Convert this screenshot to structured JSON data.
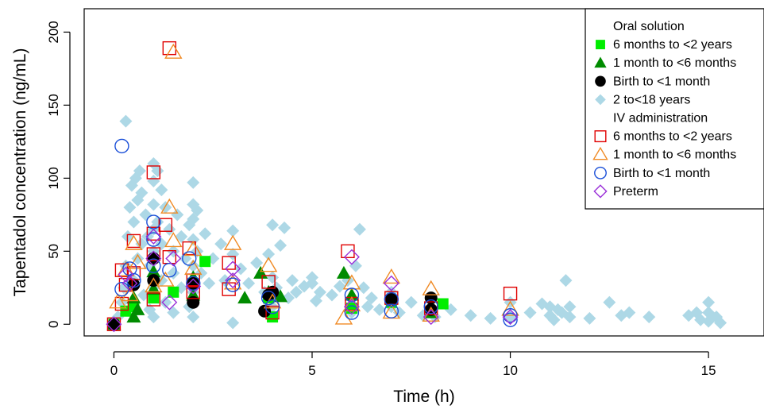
{
  "chart_data": {
    "type": "scatter",
    "title": "",
    "xlabel": "Time (h)",
    "ylabel": "Tapentadol concentration (ng/mL)",
    "xlim": [
      -0.75,
      16.4
    ],
    "ylim": [
      -8,
      216
    ],
    "xticks": [
      "0",
      "5",
      "10",
      "15"
    ],
    "yticks": [
      "0",
      "50",
      "100",
      "150",
      "200"
    ],
    "grid": false,
    "legend_position": "top-right",
    "legend_groups": [
      "Oral solution",
      "IV administration"
    ],
    "colors": {
      "oral_6m_2y": "#00ee00",
      "oral_1m_6m": "#008b00",
      "oral_birth_1m": "#000000",
      "oral_2_18y": "#add8e6",
      "iv_6m_2y": "#e00000",
      "iv_1m_6m": "#f08a24",
      "iv_birth_1m": "#1a4fd8",
      "iv_preterm": "#9a2fd8"
    },
    "series": [
      {
        "name": "6 months to <2 years",
        "group": "Oral solution",
        "marker": "filled-square",
        "color_key": "oral_6m_2y",
        "points": [
          [
            0,
            0
          ],
          [
            0.3,
            9
          ],
          [
            0.5,
            12
          ],
          [
            1,
            18
          ],
          [
            1.5,
            22
          ],
          [
            2,
            28
          ],
          [
            2.3,
            43
          ],
          [
            4,
            5
          ],
          [
            6,
            11
          ],
          [
            8.3,
            14
          ],
          [
            7,
            15
          ],
          [
            3.9,
            18
          ]
        ]
      },
      {
        "name": "1 month to <6 months",
        "group": "Oral solution",
        "marker": "filled-triangle",
        "color_key": "oral_1m_6m",
        "points": [
          [
            0.5,
            5
          ],
          [
            0.6,
            10
          ],
          [
            0.5,
            18
          ],
          [
            1,
            36
          ],
          [
            1,
            24
          ],
          [
            2,
            32
          ],
          [
            2,
            20
          ],
          [
            3.3,
            18
          ],
          [
            3.7,
            35
          ],
          [
            3.9,
            22
          ],
          [
            4.2,
            19
          ],
          [
            5.8,
            35
          ],
          [
            6,
            20
          ],
          [
            7,
            18
          ],
          [
            8,
            8
          ],
          [
            0,
            0
          ]
        ]
      },
      {
        "name": "Birth to <1 month",
        "group": "Oral solution",
        "marker": "filled-circle",
        "color_key": "oral_birth_1m",
        "points": [
          [
            0,
            0
          ],
          [
            0.5,
            27
          ],
          [
            1,
            45
          ],
          [
            1,
            30
          ],
          [
            2,
            15
          ],
          [
            2,
            28
          ],
          [
            3.8,
            9
          ],
          [
            3.9,
            20
          ],
          [
            4,
            22
          ],
          [
            7,
            17
          ],
          [
            8,
            18
          ],
          [
            8,
            10
          ]
        ]
      },
      {
        "name": "2 to<18 years",
        "group": "Oral solution",
        "marker": "filled-diamond",
        "color_key": "oral_2_18y",
        "points": [
          [
            0,
            0
          ],
          [
            0.1,
            5
          ],
          [
            0.2,
            15
          ],
          [
            0.25,
            25
          ],
          [
            0.3,
            40
          ],
          [
            0.3,
            139
          ],
          [
            0.35,
            60
          ],
          [
            0.4,
            80
          ],
          [
            0.45,
            95
          ],
          [
            0.5,
            70
          ],
          [
            0.5,
            30
          ],
          [
            0.55,
            100
          ],
          [
            0.6,
            85
          ],
          [
            0.6,
            45
          ],
          [
            0.65,
            105
          ],
          [
            0.7,
            90
          ],
          [
            0.7,
            55
          ],
          [
            0.75,
            20
          ],
          [
            0.8,
            75
          ],
          [
            0.85,
            60
          ],
          [
            0.9,
            40
          ],
          [
            0.9,
            10
          ],
          [
            1,
            110
          ],
          [
            1,
            98
          ],
          [
            1,
            82
          ],
          [
            1,
            65
          ],
          [
            1,
            50
          ],
          [
            1,
            25
          ],
          [
            1,
            5
          ],
          [
            1.1,
            105
          ],
          [
            1.1,
            70
          ],
          [
            1.2,
            92
          ],
          [
            1.2,
            55
          ],
          [
            1.2,
            30
          ],
          [
            1.3,
            80
          ],
          [
            1.3,
            15
          ],
          [
            1.4,
            65
          ],
          [
            1.5,
            50
          ],
          [
            1.5,
            35
          ],
          [
            1.5,
            8
          ],
          [
            1.6,
            75
          ],
          [
            1.7,
            60
          ],
          [
            1.7,
            25
          ],
          [
            1.8,
            45
          ],
          [
            1.9,
            68
          ],
          [
            1.9,
            12
          ],
          [
            2,
            97
          ],
          [
            2,
            82
          ],
          [
            2,
            72
          ],
          [
            2,
            58
          ],
          [
            2,
            40
          ],
          [
            2,
            22
          ],
          [
            2,
            5
          ],
          [
            2.1,
            78
          ],
          [
            2.1,
            50
          ],
          [
            2.2,
            35
          ],
          [
            2.3,
            62
          ],
          [
            2.4,
            28
          ],
          [
            2.5,
            45
          ],
          [
            2.7,
            55
          ],
          [
            2.8,
            30
          ],
          [
            3,
            64
          ],
          [
            3,
            48
          ],
          [
            3,
            1
          ],
          [
            3.2,
            38
          ],
          [
            3.4,
            28
          ],
          [
            3.6,
            42
          ],
          [
            3.8,
            22
          ],
          [
            3.9,
            48
          ],
          [
            4,
            68
          ],
          [
            4,
            32
          ],
          [
            4,
            12
          ],
          [
            4.1,
            25
          ],
          [
            4.2,
            54
          ],
          [
            4.3,
            66
          ],
          [
            4.4,
            18
          ],
          [
            4.5,
            30
          ],
          [
            4.6,
            22
          ],
          [
            4.8,
            26
          ],
          [
            5,
            28
          ],
          [
            5,
            32
          ],
          [
            5.1,
            16
          ],
          [
            5.2,
            22
          ],
          [
            5.5,
            20
          ],
          [
            5.7,
            26
          ],
          [
            5.9,
            30
          ],
          [
            6,
            18
          ],
          [
            6,
            8
          ],
          [
            6.1,
            40
          ],
          [
            6.2,
            65
          ],
          [
            6.3,
            25
          ],
          [
            6.4,
            12
          ],
          [
            6.5,
            18
          ],
          [
            6.7,
            10
          ],
          [
            7,
            22
          ],
          [
            7,
            12
          ],
          [
            7.2,
            8
          ],
          [
            7.5,
            15
          ],
          [
            7.8,
            6
          ],
          [
            8,
            12
          ],
          [
            8.1,
            5
          ],
          [
            8.5,
            10
          ],
          [
            9,
            6
          ],
          [
            9.5,
            4
          ],
          [
            10,
            15
          ],
          [
            10,
            5
          ],
          [
            10.5,
            8
          ],
          [
            10.8,
            14
          ],
          [
            11,
            12
          ],
          [
            11,
            6
          ],
          [
            11.1,
            3
          ],
          [
            11.2,
            10
          ],
          [
            11.3,
            8
          ],
          [
            11.4,
            30
          ],
          [
            11.5,
            5
          ],
          [
            11.5,
            12
          ],
          [
            12,
            4
          ],
          [
            12.5,
            15
          ],
          [
            12.8,
            6
          ],
          [
            13,
            8
          ],
          [
            13.5,
            5
          ],
          [
            14.5,
            6
          ],
          [
            14.7,
            8
          ],
          [
            14.8,
            3
          ],
          [
            15,
            15
          ],
          [
            15,
            8
          ],
          [
            15,
            2
          ],
          [
            15.2,
            5
          ],
          [
            15.3,
            1
          ]
        ]
      },
      {
        "name": "6 months to <2 years",
        "group": "IV administration",
        "marker": "open-square",
        "color_key": "iv_6m_2y",
        "points": [
          [
            0,
            0
          ],
          [
            0.2,
            14
          ],
          [
            0.2,
            37
          ],
          [
            0.3,
            27
          ],
          [
            0.5,
            57
          ],
          [
            0.5,
            35
          ],
          [
            1,
            104
          ],
          [
            1,
            62
          ],
          [
            1,
            48
          ],
          [
            1,
            17
          ],
          [
            1.3,
            68
          ],
          [
            1.4,
            46
          ],
          [
            1.4,
            189
          ],
          [
            1.9,
            52
          ],
          [
            2,
            30
          ],
          [
            2,
            22
          ],
          [
            2.9,
            42
          ],
          [
            2.9,
            24
          ],
          [
            3.9,
            29
          ],
          [
            4,
            8
          ],
          [
            5.9,
            50
          ],
          [
            6,
            14
          ],
          [
            7,
            18
          ],
          [
            8,
            11
          ],
          [
            10,
            21
          ]
        ]
      },
      {
        "name": "1 month to <6 months",
        "group": "IV administration",
        "marker": "open-triangle",
        "color_key": "iv_1m_6m",
        "points": [
          [
            0.1,
            15
          ],
          [
            0.3,
            37
          ],
          [
            0.4,
            20
          ],
          [
            0.5,
            55
          ],
          [
            0.6,
            42
          ],
          [
            1,
            26
          ],
          [
            1.3,
            30
          ],
          [
            1.4,
            80
          ],
          [
            1.5,
            186
          ],
          [
            1.5,
            57
          ],
          [
            2,
            51
          ],
          [
            2,
            38
          ],
          [
            3,
            28
          ],
          [
            3,
            55
          ],
          [
            3.9,
            40
          ],
          [
            4,
            15
          ],
          [
            5.8,
            4
          ],
          [
            6,
            13
          ],
          [
            6,
            28
          ],
          [
            7,
            32
          ],
          [
            7,
            8
          ],
          [
            8,
            24
          ],
          [
            8,
            6
          ],
          [
            10,
            10
          ]
        ]
      },
      {
        "name": "Birth to <1 month",
        "group": "IV administration",
        "marker": "open-circle",
        "color_key": "iv_birth_1m",
        "points": [
          [
            0.2,
            122
          ],
          [
            0.2,
            24
          ],
          [
            0.4,
            38
          ],
          [
            0.5,
            30
          ],
          [
            1,
            70
          ],
          [
            1,
            58
          ],
          [
            1,
            40
          ],
          [
            1.4,
            37
          ],
          [
            1.9,
            45
          ],
          [
            2,
            28
          ],
          [
            3,
            27
          ],
          [
            3.9,
            18
          ],
          [
            4,
            12
          ],
          [
            6,
            20
          ],
          [
            6,
            8
          ],
          [
            7,
            9
          ],
          [
            7,
            17
          ],
          [
            8,
            12
          ],
          [
            10,
            6
          ],
          [
            10,
            3
          ]
        ]
      },
      {
        "name": "Preterm",
        "group": "IV administration",
        "marker": "open-diamond",
        "color_key": "iv_preterm",
        "points": [
          [
            0,
            0
          ],
          [
            0.3,
            34
          ],
          [
            0.4,
            28
          ],
          [
            1,
            60
          ],
          [
            1,
            45
          ],
          [
            1.4,
            15
          ],
          [
            1.5,
            45
          ],
          [
            2,
            26
          ],
          [
            3,
            30
          ],
          [
            3,
            38
          ],
          [
            6,
            46
          ],
          [
            6,
            12
          ],
          [
            7,
            28
          ],
          [
            8,
            5
          ],
          [
            10,
            5
          ]
        ]
      }
    ]
  }
}
